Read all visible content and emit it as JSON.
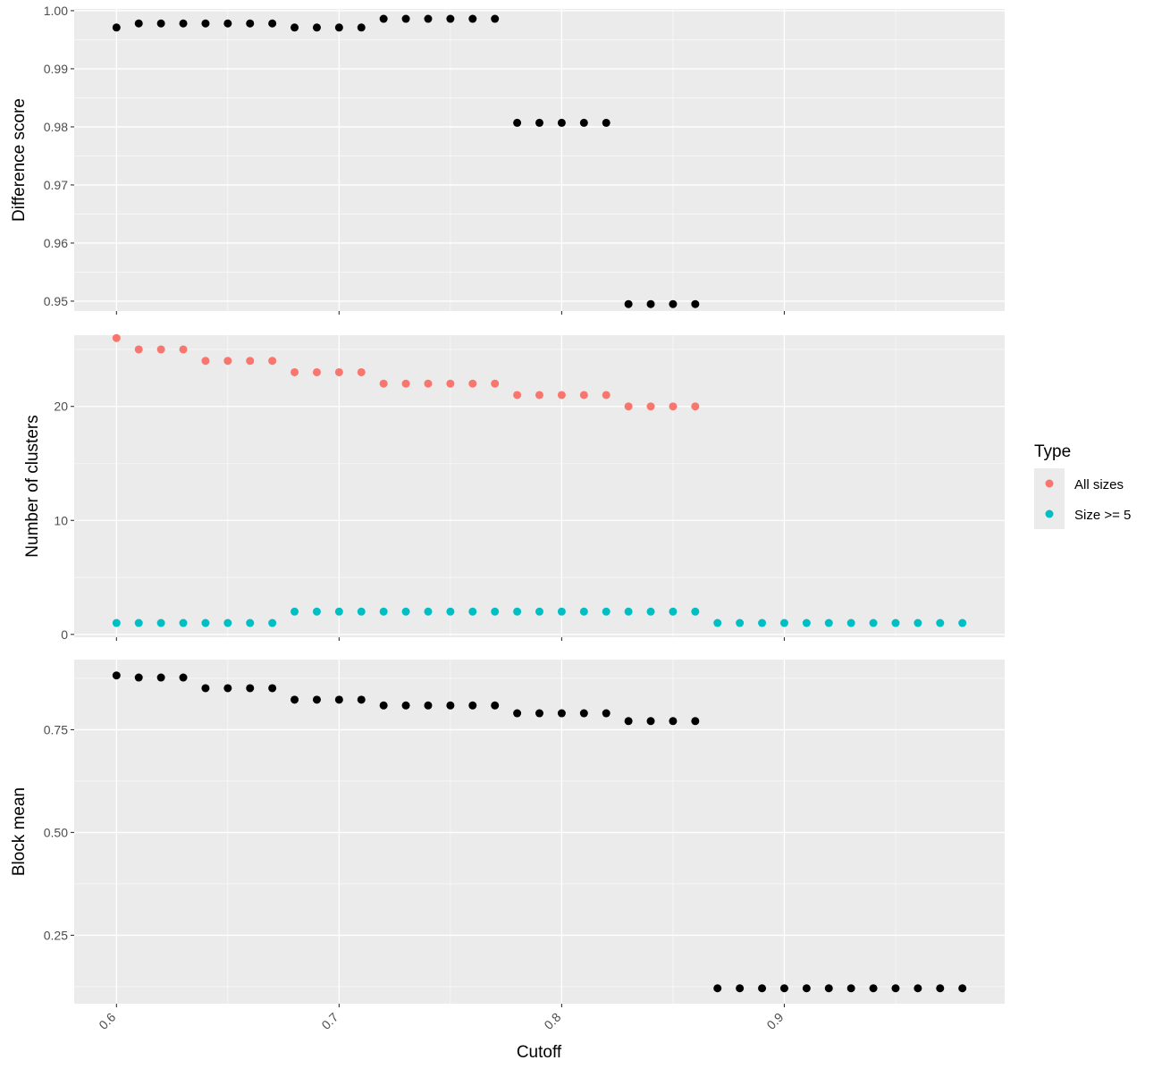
{
  "colors": {
    "panel_bg": "#EBEBEB",
    "grid_major": "#FFFFFF",
    "tick_text": "#4D4D4D",
    "black_points": "#000000",
    "all_sizes": "#F8766D",
    "size_ge5": "#00BFC4"
  },
  "xlabel": "Cutoff",
  "legend": {
    "title": "Type",
    "placement": "right",
    "entries": [
      {
        "label": "All sizes",
        "color": "#F8766D"
      },
      {
        "label": "Size >= 5",
        "color": "#00BFC4"
      }
    ]
  },
  "chart_data": [
    {
      "type": "scatter",
      "ylabel": "Difference score",
      "xlim": [
        0.581,
        0.999
      ],
      "ylim": [
        0.9483,
        1.0003
      ],
      "x_ticks": [
        0.6,
        0.7,
        0.8,
        0.9
      ],
      "y_ticks": [
        0.95,
        0.96,
        0.97,
        0.98,
        0.99,
        1.0
      ],
      "y_tick_labels": [
        "0.95",
        "0.96",
        "0.97",
        "0.98",
        "0.99",
        "1.00"
      ],
      "show_x_labels": false,
      "grid": true,
      "series": [
        {
          "color": "#000000",
          "x": [
            0.6,
            0.61,
            0.62,
            0.63,
            0.64,
            0.65,
            0.66,
            0.67,
            0.68,
            0.69,
            0.7,
            0.71,
            0.72,
            0.73,
            0.74,
            0.75,
            0.76,
            0.77,
            0.78,
            0.79,
            0.8,
            0.81,
            0.82,
            0.83,
            0.84,
            0.85,
            0.86
          ],
          "y": [
            0.9971,
            0.9978,
            0.9978,
            0.9978,
            0.9978,
            0.9978,
            0.9978,
            0.9978,
            0.9971,
            0.9971,
            0.9971,
            0.9971,
            0.9986,
            0.9986,
            0.9986,
            0.9986,
            0.9986,
            0.9986,
            0.9807,
            0.9807,
            0.9807,
            0.9807,
            0.9807,
            0.9495,
            0.9495,
            0.9495,
            0.9495
          ]
        }
      ]
    },
    {
      "type": "scatter",
      "ylabel": "Number of clusters",
      "xlim": [
        0.581,
        0.999
      ],
      "ylim": [
        -0.25,
        26.25
      ],
      "x_ticks": [
        0.6,
        0.7,
        0.8,
        0.9
      ],
      "y_ticks": [
        0,
        10,
        20
      ],
      "y_tick_labels": [
        "0",
        "10",
        "20"
      ],
      "show_x_labels": false,
      "grid": true,
      "series": [
        {
          "name": "All sizes",
          "color": "#F8766D",
          "x": [
            0.6,
            0.61,
            0.62,
            0.63,
            0.64,
            0.65,
            0.66,
            0.67,
            0.68,
            0.69,
            0.7,
            0.71,
            0.72,
            0.73,
            0.74,
            0.75,
            0.76,
            0.77,
            0.78,
            0.79,
            0.8,
            0.81,
            0.82,
            0.83,
            0.84,
            0.85,
            0.86
          ],
          "y": [
            26,
            25,
            25,
            25,
            24,
            24,
            24,
            24,
            23,
            23,
            23,
            23,
            22,
            22,
            22,
            22,
            22,
            22,
            21,
            21,
            21,
            21,
            21,
            20,
            20,
            20,
            20
          ]
        },
        {
          "name": "Size >= 5",
          "color": "#00BFC4",
          "x": [
            0.6,
            0.61,
            0.62,
            0.63,
            0.64,
            0.65,
            0.66,
            0.67,
            0.68,
            0.69,
            0.7,
            0.71,
            0.72,
            0.73,
            0.74,
            0.75,
            0.76,
            0.77,
            0.78,
            0.79,
            0.8,
            0.81,
            0.82,
            0.83,
            0.84,
            0.85,
            0.86,
            0.87,
            0.88,
            0.89,
            0.9,
            0.91,
            0.92,
            0.93,
            0.94,
            0.95,
            0.96,
            0.97,
            0.98
          ],
          "y": [
            1,
            1,
            1,
            1,
            1,
            1,
            1,
            1,
            2,
            2,
            2,
            2,
            2,
            2,
            2,
            2,
            2,
            2,
            2,
            2,
            2,
            2,
            2,
            2,
            2,
            2,
            2,
            1,
            1,
            1,
            1,
            1,
            1,
            1,
            1,
            1,
            1,
            1,
            1
          ]
        }
      ]
    },
    {
      "type": "scatter",
      "ylabel": "Block mean",
      "xlim": [
        0.581,
        0.999
      ],
      "ylim": [
        0.0835,
        0.9205
      ],
      "x_ticks": [
        0.6,
        0.7,
        0.8,
        0.9
      ],
      "y_ticks": [
        0.25,
        0.5,
        0.75
      ],
      "y_tick_labels": [
        "0.25",
        "0.50",
        "0.75"
      ],
      "x_tick_labels": [
        "0.6",
        "0.7",
        "0.8",
        "0.9"
      ],
      "show_x_labels": true,
      "grid": true,
      "series": [
        {
          "color": "#000000",
          "x": [
            0.6,
            0.61,
            0.62,
            0.63,
            0.64,
            0.65,
            0.66,
            0.67,
            0.68,
            0.69,
            0.7,
            0.71,
            0.72,
            0.73,
            0.74,
            0.75,
            0.76,
            0.77,
            0.78,
            0.79,
            0.8,
            0.81,
            0.82,
            0.83,
            0.84,
            0.85,
            0.86,
            0.87,
            0.88,
            0.89,
            0.9,
            0.91,
            0.92,
            0.93,
            0.94,
            0.95,
            0.96,
            0.97,
            0.98
          ],
          "y": [
            0.882,
            0.877,
            0.877,
            0.877,
            0.851,
            0.851,
            0.851,
            0.851,
            0.823,
            0.823,
            0.823,
            0.823,
            0.809,
            0.809,
            0.809,
            0.809,
            0.809,
            0.809,
            0.79,
            0.79,
            0.79,
            0.79,
            0.79,
            0.771,
            0.771,
            0.771,
            0.771,
            0.121,
            0.121,
            0.121,
            0.121,
            0.121,
            0.121,
            0.121,
            0.121,
            0.121,
            0.121,
            0.121,
            0.121
          ]
        }
      ]
    }
  ]
}
